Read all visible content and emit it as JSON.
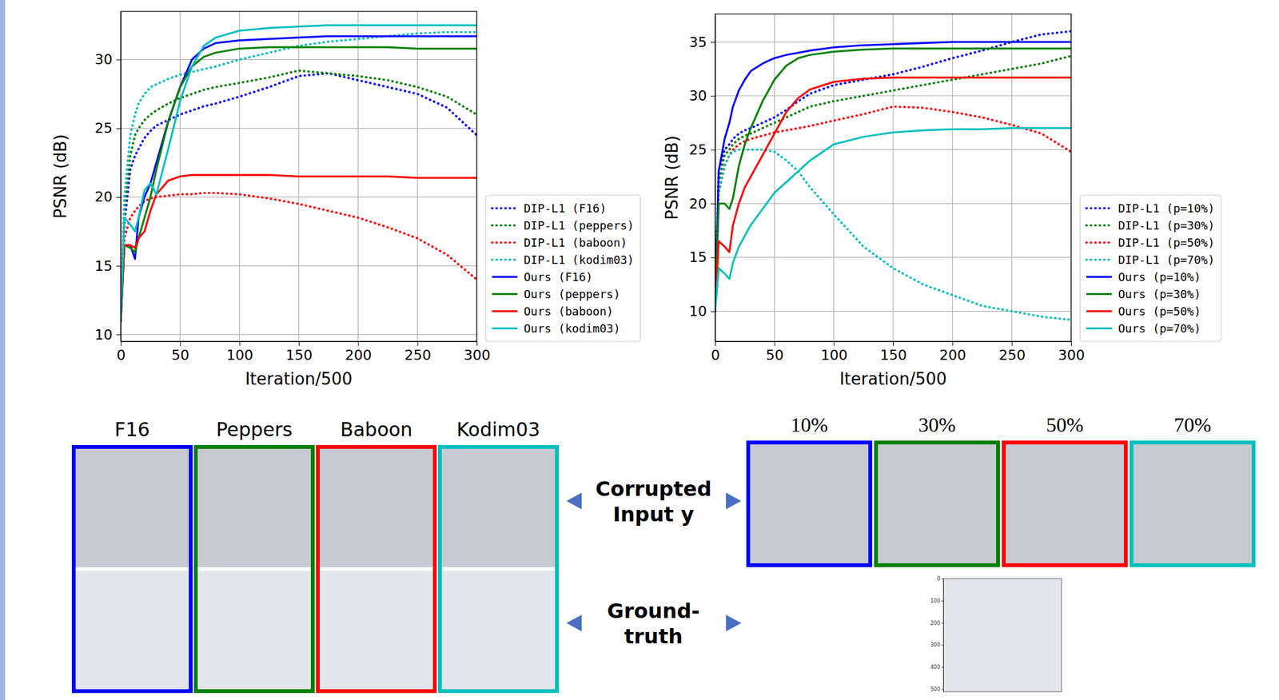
{
  "chart_data": [
    {
      "type": "line",
      "x_label": "Iteration/500",
      "y_label": "PSNR (dB)",
      "x": [
        0,
        3,
        8,
        12,
        15,
        20,
        25,
        30,
        40,
        50,
        60,
        70,
        80,
        100,
        125,
        150,
        175,
        200,
        225,
        250,
        275,
        300
      ],
      "xlim": [
        0,
        300
      ],
      "xticks": [
        0,
        50,
        100,
        150,
        200,
        250,
        300
      ],
      "ylim": [
        9.5,
        33.5
      ],
      "yticks": [
        10,
        15,
        20,
        25,
        30
      ],
      "grid": true,
      "legend": "right",
      "series": [
        {
          "name": "DIP-L1 (F16)",
          "color": "#0000ff",
          "line_style": "dotted",
          "values": [
            11,
            18,
            22,
            23,
            23.5,
            24.3,
            24.8,
            25.2,
            25.6,
            26,
            26.3,
            26.6,
            26.8,
            27.3,
            28,
            28.8,
            29,
            28.5,
            28,
            27.5,
            26.5,
            24.5
          ]
        },
        {
          "name": "DIP-L1 (peppers)",
          "color": "#008000",
          "line_style": "dotted",
          "values": [
            11,
            19,
            23,
            24.5,
            25,
            25.6,
            26,
            26.3,
            26.8,
            27.2,
            27.5,
            27.8,
            28,
            28.3,
            28.7,
            29.2,
            29,
            28.8,
            28.5,
            28,
            27.3,
            26
          ]
        },
        {
          "name": "DIP-L1 (baboon)",
          "color": "#ff0000",
          "line_style": "dotted",
          "values": [
            11,
            17,
            18.5,
            19,
            19.3,
            19.7,
            19.9,
            20,
            20.1,
            20.2,
            20.2,
            20.3,
            20.3,
            20.2,
            19.9,
            19.5,
            19,
            18.5,
            17.8,
            17,
            15.8,
            14
          ]
        },
        {
          "name": "DIP-L1 (kodim03)",
          "color": "#00bfbf",
          "line_style": "dotted",
          "values": [
            11,
            20,
            24.5,
            26,
            26.8,
            27.5,
            28,
            28.2,
            28.6,
            28.9,
            29.1,
            29.3,
            29.5,
            30,
            30.5,
            31,
            31.3,
            31.5,
            31.7,
            31.9,
            32,
            32
          ]
        },
        {
          "name": "Ours (F16)",
          "color": "#0000ff",
          "line_style": "solid",
          "values": [
            11,
            16.5,
            16.5,
            15.5,
            18.5,
            20,
            21,
            22.5,
            25.5,
            28,
            30,
            30.8,
            31.2,
            31.4,
            31.5,
            31.6,
            31.7,
            31.7,
            31.7,
            31.7,
            31.7,
            31.7
          ]
        },
        {
          "name": "Ours (peppers)",
          "color": "#008000",
          "line_style": "solid",
          "values": [
            11,
            16.5,
            16.3,
            16,
            17,
            18.5,
            20,
            22,
            25.5,
            28,
            29.5,
            30.2,
            30.5,
            30.8,
            30.9,
            30.9,
            30.9,
            30.9,
            30.9,
            30.8,
            30.8,
            30.8
          ]
        },
        {
          "name": "Ours (baboon)",
          "color": "#ff0000",
          "line_style": "solid",
          "values": [
            11,
            16.5,
            16.5,
            16.3,
            17,
            17.5,
            19,
            20.2,
            21.2,
            21.5,
            21.6,
            21.6,
            21.6,
            21.6,
            21.6,
            21.5,
            21.5,
            21.5,
            21.5,
            21.4,
            21.4,
            21.4
          ]
        },
        {
          "name": "Ours (kodim03)",
          "color": "#00bfbf",
          "line_style": "solid",
          "values": [
            11,
            18.5,
            18,
            17.5,
            18.5,
            20.5,
            21,
            20.2,
            23.5,
            27,
            29.5,
            31,
            31.6,
            32.1,
            32.3,
            32.4,
            32.5,
            32.5,
            32.5,
            32.5,
            32.5,
            32.5
          ]
        }
      ]
    },
    {
      "type": "line",
      "x_label": "Iteration/500",
      "y_label": "PSNR (dB)",
      "x": [
        0,
        3,
        8,
        12,
        15,
        20,
        25,
        30,
        40,
        50,
        60,
        70,
        80,
        100,
        125,
        150,
        175,
        200,
        225,
        250,
        275,
        300
      ],
      "xlim": [
        0,
        300
      ],
      "xticks": [
        0,
        50,
        100,
        150,
        200,
        250,
        300
      ],
      "ylim": [
        7.2,
        37.6
      ],
      "yticks": [
        10,
        15,
        20,
        25,
        30,
        35
      ],
      "grid": true,
      "legend": "right",
      "series": [
        {
          "name": "DIP-L1 (p=10%)",
          "color": "#0000ff",
          "line_style": "dotted",
          "values": [
            10,
            23,
            25,
            25.5,
            26,
            26.5,
            26.8,
            27,
            27.5,
            28,
            28.7,
            29.5,
            30.2,
            31,
            31.5,
            32,
            32.7,
            33.5,
            34.2,
            35,
            35.7,
            36
          ]
        },
        {
          "name": "DIP-L1 (p=30%)",
          "color": "#008000",
          "line_style": "dotted",
          "values": [
            10,
            22,
            24.5,
            25,
            25.5,
            26,
            26.3,
            26.5,
            27,
            27.5,
            28,
            28.5,
            29,
            29.5,
            30,
            30.5,
            31,
            31.5,
            32,
            32.5,
            33,
            33.7
          ]
        },
        {
          "name": "DIP-L1 (p=50%)",
          "color": "#ff0000",
          "line_style": "dotted",
          "values": [
            10,
            21,
            23.5,
            24.5,
            25,
            25.5,
            25.8,
            26,
            26.3,
            26.6,
            26.8,
            27,
            27.2,
            27.7,
            28.3,
            29,
            28.9,
            28.5,
            28,
            27.3,
            26.5,
            24.8
          ]
        },
        {
          "name": "DIP-L1 (p=70%)",
          "color": "#00bfbf",
          "line_style": "dotted",
          "values": [
            10,
            21,
            23.5,
            24.5,
            24.8,
            25,
            25,
            25,
            25,
            24.8,
            24,
            23,
            21.5,
            19,
            16,
            14,
            12.5,
            11.5,
            10.5,
            10,
            9.5,
            9.2
          ]
        },
        {
          "name": "Ours (p=10%)",
          "color": "#0000ff",
          "line_style": "solid",
          "values": [
            10,
            23,
            26,
            27.5,
            29,
            30.5,
            31.5,
            32.3,
            33,
            33.5,
            33.8,
            34,
            34.2,
            34.5,
            34.7,
            34.8,
            34.9,
            35,
            35,
            35,
            35,
            35
          ]
        },
        {
          "name": "Ours (p=30%)",
          "color": "#008000",
          "line_style": "solid",
          "values": [
            10,
            20,
            20,
            19.5,
            20.5,
            23.5,
            25.5,
            27,
            29.5,
            31.5,
            32.8,
            33.5,
            33.8,
            34.1,
            34.3,
            34.4,
            34.4,
            34.4,
            34.4,
            34.4,
            34.4,
            34.4
          ]
        },
        {
          "name": "Ours (p=50%)",
          "color": "#ff0000",
          "line_style": "solid",
          "values": [
            10,
            16.5,
            16,
            15.5,
            18,
            20,
            21.5,
            22.5,
            24.5,
            26.5,
            28.5,
            29.8,
            30.6,
            31.3,
            31.6,
            31.7,
            31.7,
            31.7,
            31.7,
            31.7,
            31.7,
            31.7
          ]
        },
        {
          "name": "Ours (p=70%)",
          "color": "#00bfbf",
          "line_style": "solid",
          "values": [
            10,
            14,
            13.5,
            13,
            14.5,
            16,
            17,
            18,
            19.5,
            21,
            22,
            23,
            24,
            25.5,
            26.2,
            26.6,
            26.8,
            26.9,
            26.9,
            27,
            27,
            27
          ]
        }
      ]
    }
  ],
  "figure": {
    "left_panels": [
      {
        "title": "F16",
        "color": "#0000ff"
      },
      {
        "title": "Peppers",
        "color": "#008000"
      },
      {
        "title": "Baboon",
        "color": "#ff0000"
      },
      {
        "title": "Kodim03",
        "color": "#00bfbf"
      }
    ],
    "right_panels": [
      {
        "title": "10%",
        "color": "#0000ff"
      },
      {
        "title": "30%",
        "color": "#008000"
      },
      {
        "title": "50%",
        "color": "#ff0000"
      },
      {
        "title": "70%",
        "color": "#00bfbf"
      }
    ],
    "row_labels": [
      "Corrupted Input y",
      "Ground-truth"
    ],
    "ground_truth_axis": {
      "ylim": [
        0,
        512
      ],
      "yticks": [
        0,
        100,
        200,
        300,
        400,
        500
      ]
    }
  }
}
